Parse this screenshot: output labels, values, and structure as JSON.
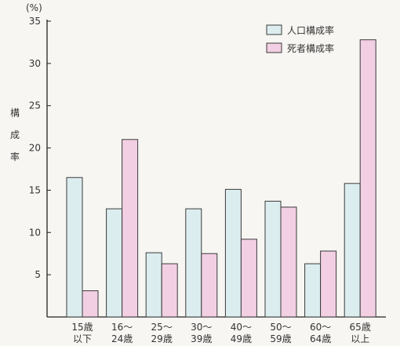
{
  "chart_data": {
    "type": "bar",
    "unit_label": "(%)",
    "ylabel_chars": [
      "構",
      "成",
      "率"
    ],
    "ylim": [
      0,
      35
    ],
    "yticks": [
      "5",
      "10",
      "15",
      "20",
      "25",
      "30",
      "35"
    ],
    "categories": [
      [
        "15歳",
        "以下"
      ],
      [
        "16～",
        "24歳"
      ],
      [
        "25～",
        "29歳"
      ],
      [
        "30～",
        "39歳"
      ],
      [
        "40～",
        "49歳"
      ],
      [
        "50～",
        "59歳"
      ],
      [
        "60～",
        "64歳"
      ],
      [
        "65歳",
        "以上"
      ]
    ],
    "series": [
      {
        "name": "人口構成率",
        "color": "#dcedef",
        "values": [
          16.5,
          12.8,
          7.6,
          12.8,
          15.1,
          13.7,
          6.3,
          15.8
        ]
      },
      {
        "name": "死者構成率",
        "color": "#f2cfe3",
        "values": [
          3.1,
          21.0,
          6.3,
          7.5,
          9.2,
          13.0,
          7.8,
          32.8
        ]
      }
    ],
    "grid": false,
    "legend_position": "top-right"
  }
}
